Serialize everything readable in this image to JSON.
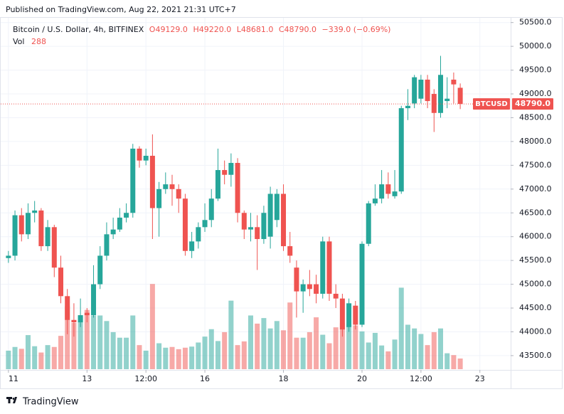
{
  "chart_data": {
    "type": "candlestick",
    "published": "Published on TradingView.com, Aug 22, 2021 21:31 UTC+7",
    "title": "Bitcoin / U.S. Dollar, 4h, BITFINEX",
    "ohlc_legend": [
      "O49129.0",
      "H49220.0",
      "L48681.0",
      "C48790.0",
      "−339.0 (−0.69%)"
    ],
    "volume_label": "Vol",
    "volume_value": "288",
    "symbol_label": "BTCUSD",
    "last_price_label": "48790.0",
    "brand": "TradingView",
    "up_color": "#26a69a",
    "down_color": "#ef5350",
    "open": [
      45550,
      45600,
      46450,
      46050,
      46500,
      46550,
      45800,
      46200,
      45350,
      44750,
      44250,
      44200,
      44400,
      44350,
      45000,
      45600,
      46050,
      46150,
      46400,
      46500,
      47850,
      47600,
      47700,
      46600,
      47000,
      47100,
      47000,
      46800,
      45700,
      45900,
      46200,
      46350,
      46800,
      47400,
      47300,
      47550,
      46500,
      46150,
      46200,
      45950,
      46000,
      46350,
      46900,
      45800,
      45350,
      44850,
      45000,
      45000,
      44800,
      45900,
      44800,
      44700,
      44100,
      44550,
      44150,
      45850,
      46700,
      46800,
      47100,
      46850,
      46950,
      48700,
      48800,
      48900,
      49300,
      49000,
      48600,
      48850,
      49300,
      49129
    ],
    "high": [
      45700,
      46550,
      46600,
      46700,
      46750,
      46600,
      46350,
      46250,
      45600,
      44900,
      44600,
      44700,
      44500,
      45400,
      45800,
      46300,
      46400,
      46600,
      46700,
      47950,
      47900,
      47850,
      48150,
      47150,
      47350,
      47300,
      47100,
      46900,
      46100,
      46300,
      46700,
      47000,
      47850,
      47600,
      47750,
      47650,
      46550,
      46500,
      46450,
      46650,
      47050,
      47000,
      47100,
      46100,
      45500,
      45100,
      45300,
      45200,
      46000,
      46000,
      45000,
      44800,
      44700,
      44650,
      45900,
      46750,
      47100,
      47400,
      47350,
      47400,
      48750,
      49100,
      49400,
      49400,
      49400,
      49100,
      49800,
      49350,
      49450,
      49220
    ],
    "low": [
      45450,
      45500,
      45900,
      45950,
      46300,
      45700,
      45700,
      45150,
      44600,
      43950,
      43900,
      44100,
      44200,
      44300,
      44900,
      45500,
      45950,
      46100,
      46300,
      46400,
      47450,
      47500,
      45950,
      46000,
      46900,
      46650,
      46500,
      45600,
      45550,
      45750,
      46100,
      46200,
      46750,
      47100,
      47050,
      46300,
      45950,
      45900,
      45300,
      45850,
      45750,
      46200,
      45700,
      45450,
      44300,
      44400,
      44750,
      44600,
      44700,
      44650,
      44500,
      43900,
      44000,
      44050,
      44100,
      45800,
      46650,
      46700,
      46800,
      46800,
      46900,
      48450,
      48700,
      48800,
      48700,
      48200,
      48500,
      48700,
      48800,
      48681
    ],
    "close": [
      45600,
      46450,
      46050,
      46500,
      46550,
      45800,
      46200,
      45350,
      44750,
      44250,
      44200,
      44350,
      44350,
      45000,
      45600,
      46050,
      46150,
      46400,
      46500,
      47850,
      47600,
      47700,
      46600,
      47000,
      47100,
      47000,
      46800,
      45700,
      45900,
      46200,
      46350,
      46800,
      47400,
      47300,
      47550,
      46500,
      46150,
      46200,
      45950,
      46500,
      46900,
      46900,
      45800,
      45600,
      44850,
      45000,
      44900,
      44800,
      45900,
      44800,
      44700,
      44050,
      44600,
      44150,
      45850,
      46700,
      46800,
      47100,
      46900,
      46950,
      48700,
      48750,
      49350,
      49300,
      48850,
      48600,
      49400,
      48900,
      49200,
      48790
    ],
    "volume": [
      500,
      600,
      550,
      920,
      620,
      450,
      650,
      600,
      900,
      1700,
      1250,
      1450,
      1600,
      1450,
      1450,
      1300,
      1000,
      850,
      850,
      1450,
      650,
      500,
      2300,
      700,
      580,
      600,
      540,
      580,
      610,
      720,
      880,
      1080,
      760,
      1000,
      1850,
      650,
      750,
      1450,
      1230,
      1380,
      1100,
      1300,
      1050,
      1800,
      850,
      850,
      1000,
      1400,
      930,
      700,
      1130,
      1250,
      1200,
      1180,
      1020,
      720,
      980,
      640,
      480,
      800,
      2200,
      1200,
      1100,
      950,
      650,
      1000,
      1100,
      430,
      380,
      288
    ],
    "xlim": [
      -0.2,
      76.7
    ],
    "xticks": [
      {
        "value": 0,
        "label": "11"
      },
      {
        "value": 12,
        "label": "13"
      },
      {
        "value": 21,
        "label": "12:00"
      },
      {
        "value": 30,
        "label": "16"
      },
      {
        "value": 42,
        "label": "18"
      },
      {
        "value": 54,
        "label": "20"
      },
      {
        "value": 63,
        "label": "12:00"
      },
      {
        "value": 72,
        "label": "23"
      }
    ],
    "ylim": [
      43200,
      50600
    ],
    "yticks": [
      {
        "value": 43500,
        "label": "43500.0"
      },
      {
        "value": 44000,
        "label": "44000.0"
      },
      {
        "value": 44500,
        "label": "44500.0"
      },
      {
        "value": 45000,
        "label": "45000.0"
      },
      {
        "value": 45500,
        "label": "45500.0"
      },
      {
        "value": 46000,
        "label": "46000.0"
      },
      {
        "value": 46500,
        "label": "46500.0"
      },
      {
        "value": 47000,
        "label": "47000.0"
      },
      {
        "value": 47500,
        "label": "47500.0"
      },
      {
        "value": 48000,
        "label": "48000.0"
      },
      {
        "value": 48500,
        "label": "48500.0"
      },
      {
        "value": 49000,
        "label": "49000.0"
      },
      {
        "value": 49500,
        "label": "49500.0"
      },
      {
        "value": 50000,
        "label": "50000.0"
      },
      {
        "value": 50500,
        "label": "50500.0"
      }
    ],
    "grid": true
  }
}
